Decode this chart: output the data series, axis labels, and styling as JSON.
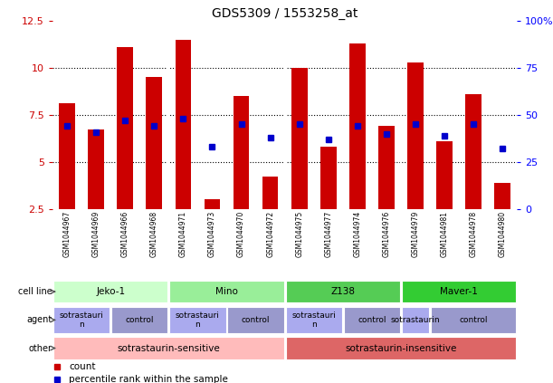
{
  "title": "GDS5309 / 1553258_at",
  "samples": [
    "GSM1044967",
    "GSM1044969",
    "GSM1044966",
    "GSM1044968",
    "GSM1044971",
    "GSM1044973",
    "GSM1044970",
    "GSM1044972",
    "GSM1044975",
    "GSM1044977",
    "GSM1044974",
    "GSM1044976",
    "GSM1044979",
    "GSM1044981",
    "GSM1044978",
    "GSM1044980"
  ],
  "bar_values": [
    8.1,
    6.7,
    11.1,
    9.5,
    11.5,
    3.0,
    8.5,
    4.2,
    10.0,
    5.8,
    11.3,
    6.9,
    10.3,
    6.1,
    8.6,
    3.9
  ],
  "dot_values": [
    6.9,
    6.6,
    7.2,
    6.9,
    7.3,
    5.8,
    7.0,
    6.3,
    7.0,
    6.2,
    6.9,
    6.5,
    7.0,
    6.4,
    7.0,
    5.7
  ],
  "ylim_left": [
    2.5,
    12.5
  ],
  "ylim_right": [
    0,
    100
  ],
  "yticks_left": [
    2.5,
    5.0,
    7.5,
    10.0,
    12.5
  ],
  "ytick_labels_left": [
    "2.5",
    "5",
    "7.5",
    "10",
    "12.5"
  ],
  "yticks_right": [
    0,
    25,
    50,
    75,
    100
  ],
  "ytick_labels_right": [
    "0",
    "25",
    "50",
    "75",
    "100%"
  ],
  "bar_color": "#cc0000",
  "dot_color": "#0000cc",
  "bg_color": "#ffffff",
  "sample_bg_color": "#cccccc",
  "cell_line_groups": [
    {
      "label": "Jeko-1",
      "start": 0,
      "end": 4,
      "color": "#ccffcc"
    },
    {
      "label": "Mino",
      "start": 4,
      "end": 8,
      "color": "#99ee99"
    },
    {
      "label": "Z138",
      "start": 8,
      "end": 12,
      "color": "#55cc55"
    },
    {
      "label": "Maver-1",
      "start": 12,
      "end": 16,
      "color": "#33cc33"
    }
  ],
  "agent_groups": [
    {
      "label": "sotrastauri\nn",
      "start": 0,
      "end": 2,
      "color": "#aaaaee"
    },
    {
      "label": "control",
      "start": 2,
      "end": 4,
      "color": "#9999cc"
    },
    {
      "label": "sotrastauri\nn",
      "start": 4,
      "end": 6,
      "color": "#aaaaee"
    },
    {
      "label": "control",
      "start": 6,
      "end": 8,
      "color": "#9999cc"
    },
    {
      "label": "sotrastauri\nn",
      "start": 8,
      "end": 10,
      "color": "#aaaaee"
    },
    {
      "label": "control",
      "start": 10,
      "end": 12,
      "color": "#9999cc"
    },
    {
      "label": "sotrastaurin",
      "start": 12,
      "end": 13,
      "color": "#aaaaee"
    },
    {
      "label": "control",
      "start": 13,
      "end": 16,
      "color": "#9999cc"
    }
  ],
  "other_groups": [
    {
      "label": "sotrastaurin-sensitive",
      "start": 0,
      "end": 8,
      "color": "#ffbbbb"
    },
    {
      "label": "sotrastaurin-insensitive",
      "start": 8,
      "end": 16,
      "color": "#dd6666"
    }
  ],
  "legend_items": [
    {
      "color": "#cc0000",
      "label": "count"
    },
    {
      "color": "#0000cc",
      "label": "percentile rank within the sample"
    }
  ],
  "group_dividers": [
    4,
    8,
    12
  ]
}
